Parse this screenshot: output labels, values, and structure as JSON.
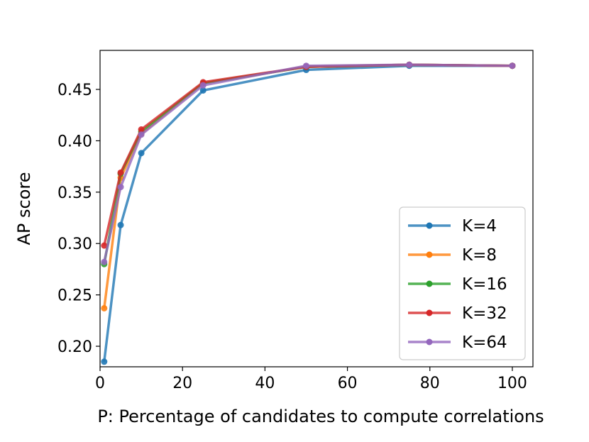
{
  "chart_data": {
    "type": "line",
    "title": "",
    "xlabel": "P: Percentage of candidates to compute correlations",
    "ylabel": "AP score",
    "xlim": [
      0,
      105
    ],
    "ylim": [
      0.18,
      0.488
    ],
    "xticks": [
      0,
      20,
      40,
      60,
      80,
      100
    ],
    "yticks": [
      0.2,
      0.25,
      0.3,
      0.35,
      0.4,
      0.45
    ],
    "xtick_labels": [
      "0",
      "20",
      "40",
      "60",
      "80",
      "100"
    ],
    "ytick_labels": [
      "0.20",
      "0.25",
      "0.30",
      "0.35",
      "0.40",
      "0.45"
    ],
    "grid": false,
    "legend_position": "lower-right",
    "x": [
      1,
      5,
      10,
      25,
      50,
      75,
      100
    ],
    "series": [
      {
        "name": "K=4",
        "color": "#1f77b4",
        "values": [
          0.185,
          0.318,
          0.388,
          0.449,
          0.469,
          0.473,
          0.473
        ]
      },
      {
        "name": "K=8",
        "color": "#ff7f0e",
        "values": [
          0.237,
          0.364,
          0.407,
          0.456,
          0.472,
          0.474,
          0.473
        ]
      },
      {
        "name": "K=16",
        "color": "#2ca02c",
        "values": [
          0.28,
          0.368,
          0.409,
          0.456,
          0.472,
          0.474,
          0.473
        ]
      },
      {
        "name": "K=32",
        "color": "#d62728",
        "values": [
          0.298,
          0.369,
          0.411,
          0.457,
          0.472,
          0.474,
          0.473
        ]
      },
      {
        "name": "K=64",
        "color": "#9467bd",
        "values": [
          0.282,
          0.355,
          0.406,
          0.454,
          0.473,
          0.474,
          0.473
        ]
      }
    ]
  }
}
